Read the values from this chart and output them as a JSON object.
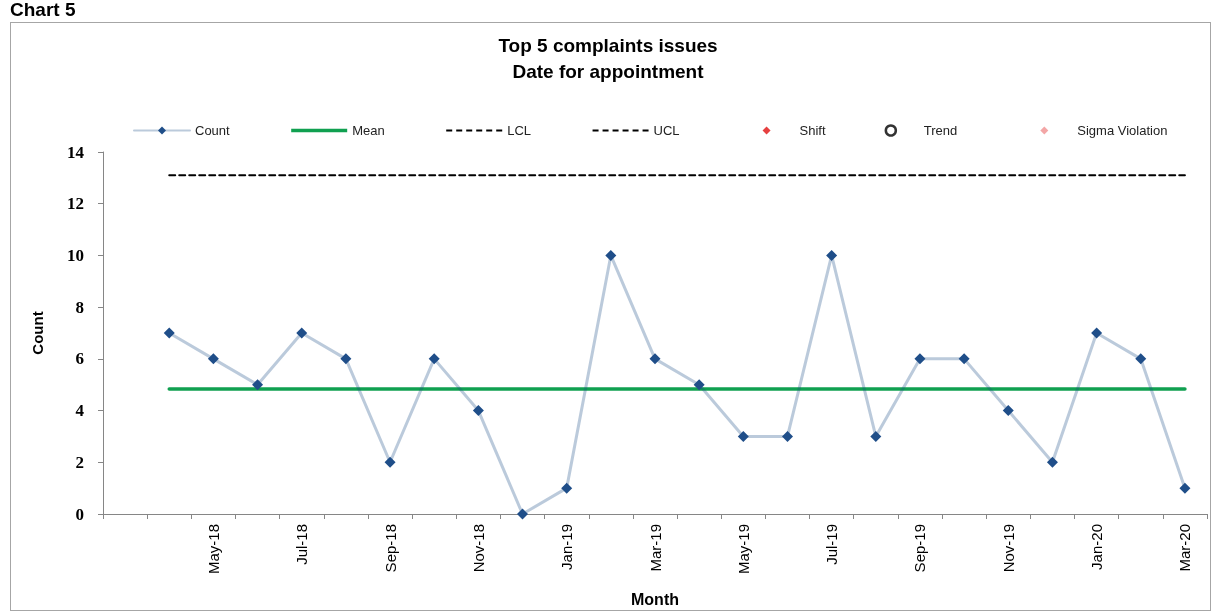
{
  "chart_data": {
    "type": "line",
    "title": "Top 5 complaints issues",
    "subtitle": "Date for appointment",
    "xlabel": "Month",
    "ylabel": "Count",
    "annotations": [
      "Chart 5"
    ],
    "categories": [
      null,
      null,
      "May-18",
      null,
      "Jul-18",
      null,
      "Sep-18",
      null,
      "Nov-18",
      null,
      "Jan-19",
      null,
      "Mar-19",
      null,
      "May-19",
      null,
      "Jul-19",
      null,
      "Sep-19",
      null,
      "Nov-19",
      null,
      "Jan-20",
      null,
      "Mar-20"
    ],
    "series": [
      {
        "name": "Count",
        "color": "#1f4e89",
        "marker": "diamond",
        "line_style": "solid",
        "values": [
          null,
          7,
          6,
          5,
          7,
          6,
          2,
          6,
          4,
          0,
          1,
          10,
          6,
          5,
          3,
          3,
          10,
          3,
          6,
          6,
          4,
          2,
          7,
          6,
          1
        ]
      },
      {
        "name": "Mean",
        "color": "#10a050",
        "marker": "none",
        "line_style": "solid",
        "values": [
          null,
          4.83,
          4.83,
          4.83,
          4.83,
          4.83,
          4.83,
          4.83,
          4.83,
          4.83,
          4.83,
          4.83,
          4.83,
          4.83,
          4.83,
          4.83,
          4.83,
          4.83,
          4.83,
          4.83,
          4.83,
          4.83,
          4.83,
          4.83,
          4.83
        ]
      },
      {
        "name": "LCL",
        "color": "#000000",
        "marker": "none",
        "line_style": "dashed",
        "values": [
          null,
          null,
          null,
          null,
          null,
          null,
          null,
          null,
          null,
          null,
          null,
          null,
          null,
          null,
          null,
          null,
          null,
          null,
          null,
          null,
          null,
          null,
          null,
          null,
          null
        ]
      },
      {
        "name": "UCL",
        "color": "#000000",
        "marker": "none",
        "line_style": "dashed",
        "values": [
          null,
          13.1,
          13.1,
          13.1,
          13.1,
          13.1,
          13.1,
          13.1,
          13.1,
          13.1,
          13.1,
          13.1,
          13.1,
          13.1,
          13.1,
          13.1,
          13.1,
          13.1,
          13.1,
          13.1,
          13.1,
          13.1,
          13.1,
          13.1,
          13.1
        ]
      },
      {
        "name": "Shift",
        "type": "scatter",
        "color": "#e01010",
        "marker": "diamond",
        "values": [
          null,
          null,
          null,
          null,
          null,
          null,
          null,
          null,
          null,
          null,
          null,
          null,
          null,
          null,
          null,
          null,
          null,
          null,
          null,
          null,
          null,
          null,
          null,
          null,
          null
        ]
      },
      {
        "name": "Trend",
        "type": "scatter",
        "color": "#000000",
        "marker": "circle",
        "values": [
          null,
          null,
          null,
          null,
          null,
          null,
          null,
          null,
          null,
          null,
          null,
          null,
          null,
          null,
          null,
          null,
          null,
          null,
          null,
          null,
          null,
          null,
          null,
          null,
          null
        ]
      },
      {
        "name": "Sigma Violation",
        "type": "scatter",
        "color": "#f09090",
        "marker": "diamond",
        "values": [
          null,
          null,
          null,
          null,
          null,
          null,
          null,
          null,
          null,
          null,
          null,
          null,
          null,
          null,
          null,
          null,
          null,
          null,
          null,
          null,
          null,
          null,
          null,
          null,
          null
        ]
      }
    ],
    "ylim": [
      0,
      14
    ],
    "yticks": [
      0,
      2,
      4,
      6,
      8,
      10,
      12,
      14
    ],
    "legend": "top"
  }
}
